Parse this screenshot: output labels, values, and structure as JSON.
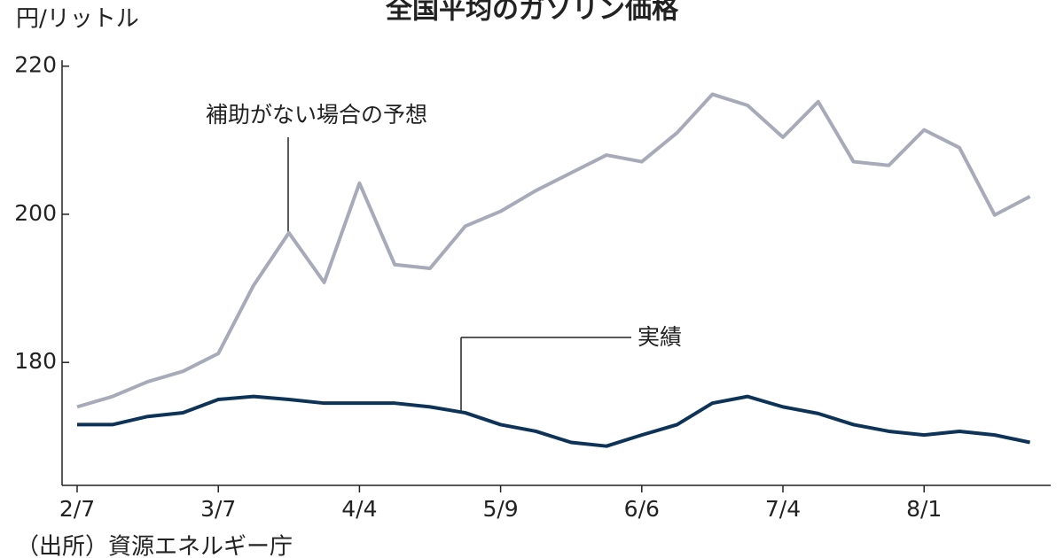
{
  "chart_data": {
    "type": "line",
    "title": "全国平均のガソリン価格",
    "y_label": "円/リットル",
    "source": "（出所）資源エネルギー庁",
    "categories": [
      "2/7",
      null,
      null,
      null,
      "3/7",
      null,
      null,
      null,
      "4/4",
      null,
      null,
      null,
      "5/9",
      null,
      null,
      null,
      "6/6",
      null,
      null,
      null,
      "7/4",
      null,
      null,
      null,
      "8/1",
      null,
      null,
      null
    ],
    "series": [
      {
        "name": "補助がない場合の予想",
        "color": "#a7aab9",
        "values": [
          174.0,
          175.4,
          177.4,
          178.8,
          181.2,
          190.4,
          197.5,
          190.8,
          204.2,
          193.2,
          192.7,
          198.4,
          200.4,
          203.2,
          205.6,
          208.0,
          207.1,
          211.0,
          216.2,
          214.7,
          210.4,
          215.2,
          207.1,
          206.6,
          211.4,
          209.0,
          199.9,
          202.4
        ]
      },
      {
        "name": "実績",
        "color": "#0e3358",
        "values": [
          171.6,
          171.6,
          172.7,
          173.2,
          175.0,
          175.4,
          175.0,
          174.5,
          174.5,
          174.5,
          174.0,
          173.2,
          171.6,
          170.7,
          169.2,
          168.7,
          170.2,
          171.6,
          174.5,
          175.4,
          174.0,
          173.1,
          171.6,
          170.7,
          170.2,
          170.7,
          170.2,
          169.2
        ]
      }
    ],
    "ylim": [
      163.4,
      220.8
    ],
    "yticks": [
      180,
      200,
      220
    ]
  }
}
